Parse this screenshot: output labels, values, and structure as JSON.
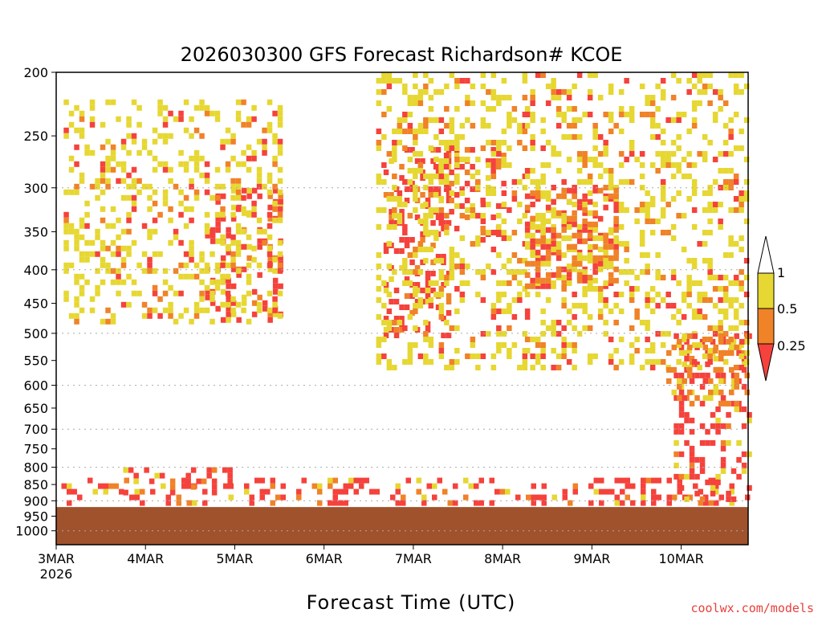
{
  "chart_data": {
    "type": "heatmap",
    "title": "2026030300 GFS Forecast Richardson# KCOE",
    "xlabel": "Forecast Time (UTC)",
    "ylabel": "",
    "credit": "coolwx.com/models",
    "x_ticks": [
      {
        "label": "3MAR",
        "sublabel": "2026",
        "hour": 0
      },
      {
        "label": "4MAR",
        "hour": 24
      },
      {
        "label": "5MAR",
        "hour": 48
      },
      {
        "label": "6MAR",
        "hour": 72
      },
      {
        "label": "7MAR",
        "hour": 96
      },
      {
        "label": "8MAR",
        "hour": 120
      },
      {
        "label": "9MAR",
        "hour": 144
      },
      {
        "label": "10MAR",
        "hour": 168
      }
    ],
    "xlim_hours": [
      0,
      186
    ],
    "y_scale": "log",
    "y_axis": "pressure (hPa)",
    "ylim": [
      1050,
      200
    ],
    "y_ticks": [
      200,
      250,
      300,
      350,
      400,
      450,
      500,
      550,
      600,
      650,
      700,
      750,
      800,
      850,
      900,
      950,
      1000
    ],
    "grid": {
      "dotted_levels": [
        300,
        400,
        500,
        600,
        700,
        800,
        900,
        1000
      ]
    },
    "colorbar": {
      "labels": [
        "1",
        "0.5",
        "0.25"
      ],
      "bins": [
        {
          "range": "< 0.25",
          "color": "#f5423c"
        },
        {
          "range": "0.25-0.5",
          "color": "#f08228"
        },
        {
          "range": "0.5-1",
          "color": "#e6d732"
        },
        {
          "range": "> 1",
          "color": "#ffffff"
        }
      ]
    },
    "ground_color": "#a0522d",
    "surface_pressure_hpa": 920,
    "regions": [
      {
        "t0": 0,
        "t1": 186,
        "p0": 830,
        "p1": 900,
        "class": "<0.25 / 0.25-0.5 low-level band",
        "color": "#f5423c"
      },
      {
        "t0": 18,
        "t1": 48,
        "p0": 800,
        "p1": 880,
        "color": "#f5423c"
      },
      {
        "t0": 40,
        "t1": 60,
        "p0": 300,
        "p1": 480,
        "color": "#f5423c"
      },
      {
        "t0": 88,
        "t1": 106,
        "p0": 260,
        "p1": 500,
        "color": "#f5423c"
      },
      {
        "t0": 100,
        "t1": 120,
        "p0": 260,
        "p1": 360,
        "color": "#f5423c"
      },
      {
        "t0": 126,
        "t1": 150,
        "p0": 300,
        "p1": 420,
        "color": "#f5423c"
      },
      {
        "t0": 166,
        "t1": 186,
        "p0": 500,
        "p1": 900,
        "color": "#f5423c"
      },
      {
        "t0": 2,
        "t1": 60,
        "p0": 220,
        "p1": 480,
        "color": "#e6d732"
      },
      {
        "t0": 86,
        "t1": 126,
        "p0": 200,
        "p1": 560,
        "color": "#e6d732"
      },
      {
        "t0": 126,
        "t1": 186,
        "p0": 200,
        "p1": 560,
        "color": "#e6d732"
      },
      {
        "t0": 126,
        "t1": 150,
        "p0": 300,
        "p1": 420,
        "color": "#f08228"
      },
      {
        "t0": 164,
        "t1": 186,
        "p0": 500,
        "p1": 650,
        "color": "#f08228"
      }
    ]
  }
}
